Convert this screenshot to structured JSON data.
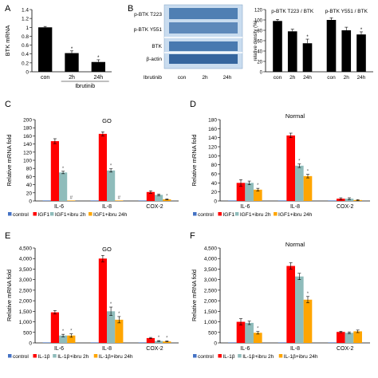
{
  "colors": {
    "axis": "#000000",
    "grid": "#d0d0d0",
    "black_bar": "#000000",
    "control": "#4472c4",
    "treat1": "#ff0000",
    "treat2": "#8fbcbb",
    "treat3": "#ffa500",
    "blot_blue": "#3a6ea8",
    "blot_bg": "#c9dcef"
  },
  "chart_data": [
    {
      "panel": "A",
      "type": "bar",
      "ylabel": "BTK mRNA",
      "xgroup_label": "Ibrutinib",
      "categories": [
        "con",
        "2h",
        "24h"
      ],
      "values": [
        1.0,
        0.42,
        0.22
      ],
      "errors": [
        0.02,
        0.05,
        0.05
      ],
      "sig": [
        "",
        "*",
        "*"
      ],
      "ylim": [
        0,
        1.4
      ],
      "yticks": [
        "0",
        "0.2",
        "0.4",
        "0.6",
        "0.8",
        "1",
        "1.2",
        "1.4"
      ],
      "ytick_values": [
        0,
        0.2,
        0.4,
        0.6,
        0.8,
        1,
        1.2,
        1.4
      ],
      "colors": [
        "#000000",
        "#000000",
        "#000000"
      ]
    },
    {
      "panel": "B",
      "type": "bar",
      "ylabel": "relative density (%)",
      "subplot_titles": [
        "p-BTK T223 / BTK",
        "p-BTK Y551 / BTK"
      ],
      "categories": [
        "con",
        "2h",
        "24h",
        "con",
        "2h",
        "24h"
      ],
      "values": [
        98,
        78,
        55,
        100,
        80,
        72
      ],
      "errors": [
        3,
        4,
        8,
        4,
        6,
        5
      ],
      "sig": [
        "",
        "",
        "*",
        "",
        "",
        "*"
      ],
      "ylim": [
        0,
        120
      ],
      "yticks": [
        "0",
        "20",
        "40",
        "60",
        "80",
        "100",
        "120"
      ],
      "ytick_values": [
        0,
        20,
        40,
        60,
        80,
        100,
        120
      ],
      "colors": [
        "#000000",
        "#000000",
        "#000000",
        "#000000",
        "#000000",
        "#000000"
      ]
    },
    {
      "panel": "C",
      "type": "bar",
      "title": "GO",
      "ylabel": "Relative mRNA fold",
      "categories": [
        "IL-6",
        "IL-8",
        "COX-2"
      ],
      "series": [
        {
          "name": "control",
          "values": [
            1,
            1,
            1
          ],
          "errors": [
            0,
            0,
            0
          ],
          "sig": [
            "",
            "",
            ""
          ]
        },
        {
          "name": "IGF1",
          "values": [
            147,
            165,
            22
          ],
          "errors": [
            6,
            5,
            3
          ],
          "sig": [
            "",
            "",
            ""
          ]
        },
        {
          "name": "IGF1+ibru 2h",
          "values": [
            70,
            75,
            15
          ],
          "errors": [
            3,
            4,
            2
          ],
          "sig": [
            "*",
            "*",
            ""
          ]
        },
        {
          "name": "IGF1+ibru 24h",
          "values": [
            1,
            1,
            4
          ],
          "errors": [
            0,
            0,
            1
          ],
          "sig": [
            "#",
            "#",
            "*"
          ]
        }
      ],
      "ylim": [
        0,
        200
      ],
      "yticks": [
        "0",
        "20",
        "40",
        "60",
        "80",
        "100",
        "120",
        "140",
        "160",
        "180",
        "200"
      ],
      "ytick_values": [
        0,
        20,
        40,
        60,
        80,
        100,
        120,
        140,
        160,
        180,
        200
      ],
      "legend": "bottom"
    },
    {
      "panel": "D",
      "type": "bar",
      "title": "Normal",
      "ylabel": "Relative mRNA fold",
      "categories": [
        "IL-6",
        "IL-8",
        "COX-2"
      ],
      "series": [
        {
          "name": "control",
          "values": [
            1,
            1,
            1
          ],
          "errors": [
            0,
            0,
            0
          ],
          "sig": [
            "",
            "",
            ""
          ]
        },
        {
          "name": "IGF1",
          "values": [
            40,
            145,
            5
          ],
          "errors": [
            7,
            5,
            2
          ],
          "sig": [
            "",
            "",
            ""
          ]
        },
        {
          "name": "IGF1+ibru 2h",
          "values": [
            40,
            78,
            5
          ],
          "errors": [
            4,
            4,
            2
          ],
          "sig": [
            "",
            "*",
            ""
          ]
        },
        {
          "name": "IGF1+ibru 24h",
          "values": [
            25,
            55,
            2
          ],
          "errors": [
            3,
            4,
            1
          ],
          "sig": [
            "*",
            "*",
            ""
          ]
        }
      ],
      "ylim": [
        0,
        180
      ],
      "yticks": [
        "0",
        "20",
        "40",
        "60",
        "80",
        "100",
        "120",
        "140",
        "160",
        "180"
      ],
      "ytick_values": [
        0,
        20,
        40,
        60,
        80,
        100,
        120,
        140,
        160,
        180
      ],
      "legend": "bottom"
    },
    {
      "panel": "E",
      "type": "bar",
      "title": "GO",
      "ylabel": "Relative mRNA fold",
      "categories": [
        "IL-6",
        "IL-8",
        "COX-2"
      ],
      "series": [
        {
          "name": "control",
          "values": [
            5,
            5,
            5
          ],
          "errors": [
            0,
            0,
            0
          ],
          "sig": [
            "",
            "",
            ""
          ]
        },
        {
          "name": "IL-1β",
          "values": [
            1450,
            4000,
            230
          ],
          "errors": [
            80,
            150,
            30
          ],
          "sig": [
            "",
            "",
            ""
          ]
        },
        {
          "name": "IL-1β+ibru 2h",
          "values": [
            350,
            1500,
            90
          ],
          "errors": [
            60,
            200,
            20
          ],
          "sig": [
            "*",
            "*",
            "*"
          ]
        },
        {
          "name": "IL-1β+ibru 24h",
          "values": [
            350,
            1100,
            70
          ],
          "errors": [
            80,
            150,
            20
          ],
          "sig": [
            "*",
            "*",
            "*"
          ]
        }
      ],
      "ylim": [
        0,
        4500
      ],
      "yticks": [
        "0",
        "500",
        "1,000",
        "1,500",
        "2,000",
        "2,500",
        "3,000",
        "3,500",
        "4,000",
        "4,500"
      ],
      "ytick_values": [
        0,
        500,
        1000,
        1500,
        2000,
        2500,
        3000,
        3500,
        4000,
        4500
      ],
      "legend": "bottom"
    },
    {
      "panel": "F",
      "type": "bar",
      "title": "Normal",
      "ylabel": "Relative mRNA fold",
      "categories": [
        "IL-6",
        "IL-8",
        "COX-2"
      ],
      "series": [
        {
          "name": "control",
          "values": [
            5,
            5,
            5
          ],
          "errors": [
            0,
            0,
            0
          ],
          "sig": [
            "",
            "",
            ""
          ]
        },
        {
          "name": "IL-1β",
          "values": [
            1000,
            3650,
            520
          ],
          "errors": [
            150,
            150,
            30
          ],
          "sig": [
            "",
            "",
            ""
          ]
        },
        {
          "name": "IL-1β+ibru 2h",
          "values": [
            950,
            3150,
            480
          ],
          "errors": [
            80,
            150,
            40
          ],
          "sig": [
            "",
            "",
            ""
          ]
        },
        {
          "name": "IL-1β+ibru 24h",
          "values": [
            480,
            2050,
            550
          ],
          "errors": [
            60,
            150,
            60
          ],
          "sig": [
            "*",
            "*",
            ""
          ]
        }
      ],
      "ylim": [
        0,
        4500
      ],
      "yticks": [
        "0",
        "500",
        "1,000",
        "1,500",
        "2,000",
        "2,500",
        "3,000",
        "3,500",
        "4,000",
        "4,500"
      ],
      "ytick_values": [
        0,
        500,
        1000,
        1500,
        2000,
        2500,
        3000,
        3500,
        4000,
        4500
      ],
      "legend": "bottom"
    }
  ],
  "panel_letters": [
    "A",
    "B",
    "C",
    "D",
    "E",
    "F"
  ],
  "blot": {
    "row_labels": [
      "p-BTK T223",
      "p-BTK Y551",
      "BTK",
      "β-actin"
    ],
    "lane_header": "Ibrutinib",
    "lanes": [
      "con",
      "2h",
      "24h"
    ]
  }
}
